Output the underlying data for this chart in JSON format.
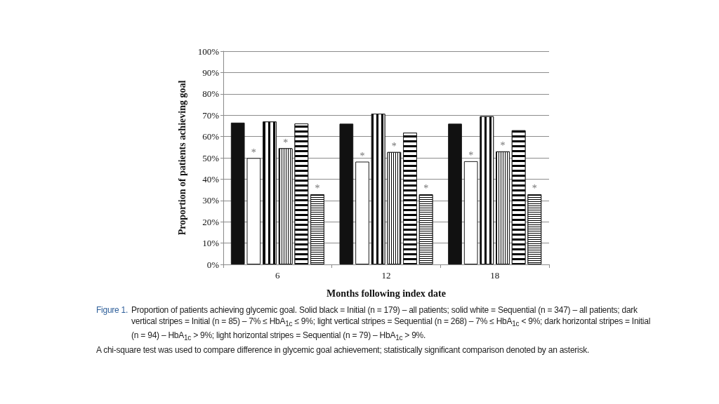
{
  "chart_data": {
    "type": "bar",
    "categories": [
      "6",
      "12",
      "18"
    ],
    "xlabel": "Months following index date",
    "ylabel": "Proportion of patients achieving goal",
    "ylim": [
      0,
      100
    ],
    "yticks": [
      {
        "value": 0,
        "label": "0%"
      },
      {
        "value": 10,
        "label": "10%"
      },
      {
        "value": 20,
        "label": "20%"
      },
      {
        "value": 30,
        "label": "30%"
      },
      {
        "value": 40,
        "label": "40%"
      },
      {
        "value": 50,
        "label": "50%"
      },
      {
        "value": 60,
        "label": "60%"
      },
      {
        "value": 70,
        "label": "70%"
      },
      {
        "value": 80,
        "label": "80%"
      },
      {
        "value": 90,
        "label": "90%"
      },
      {
        "value": 100,
        "label": "100%"
      }
    ],
    "grid": "y",
    "series": [
      {
        "color": "#111111",
        "values": [
          66.5,
          66.0,
          66.0
        ]
      },
      {
        "color": "#ffffff",
        "values": [
          49.9,
          48.2,
          48.4
        ],
        "value_labels": [
          "*",
          "*",
          "*"
        ]
      },
      {
        "color": "#000000",
        "values": [
          67.0,
          70.7,
          69.5
        ]
      },
      {
        "color": "#000000",
        "values": [
          54.5,
          52.7,
          53.0
        ],
        "value_labels": [
          "*",
          "*",
          "*"
        ]
      },
      {
        "color": "#000000",
        "values": [
          66.1,
          61.8,
          62.9
        ]
      },
      {
        "color": "#000000",
        "values": [
          32.9,
          32.9,
          32.9
        ],
        "value_labels": [
          "*",
          "*",
          "*"
        ]
      }
    ],
    "annotations": [
      "Figure 1.",
      "Proportion of patients achieving glycemic goal. Solid black = Initial (n = 179) – all patients; solid white = Sequential (n = 347) – all patients; dark vertical stripes = Initial (n = 85) – 7% ≤ HbA$_{1c}$ ≤ 9%; light vertical stripes = Sequential (n = 268) – 7% ≤ HbA$_{1c}$ < 9%; dark horizontal stripes = Initial (n = 94) – HbA$_{1c}$ > 9%; light horizontal stripes = Sequential (n = 79) – HbA$_{1c}$ > 9%.",
      "A chi-square test was used to compare difference in glycemic goal achievement; statistically significant comparison denoted by an asterisk."
    ]
  }
}
